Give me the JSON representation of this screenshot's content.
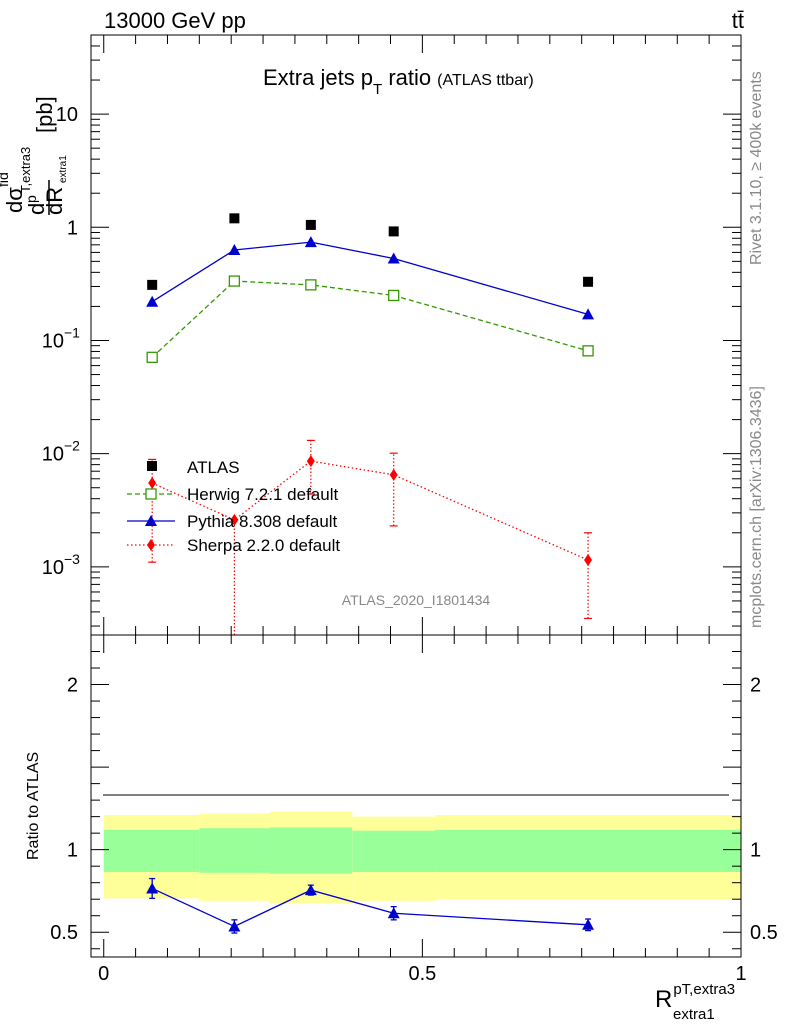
{
  "header": {
    "energy_label": "13000 GeV pp",
    "process_label": "tt̄"
  },
  "side_text": {
    "rivet": "Rivet 3.1.10, ≥ 400k events",
    "mcplots": "mcplots.cern.ch [arXiv:1306.3436]"
  },
  "chart_data": [
    {
      "type": "scatter",
      "title": "Extra jets p",
      "title_sub": "T",
      "title_tail": " ratio",
      "title_small": "(ATLAS ttbar)",
      "watermark": "ATLAS_2020_I1801434",
      "ylabel": {
        "d_top": "d",
        "sigma": "dσ",
        "fid": "fid",
        "p_sub": "p",
        "t_extra3": "T,extra3",
        "d_bottom": "dR",
        "extra1": "extra1",
        "unit": "[pb]"
      },
      "yscale": "log",
      "ylim": [
        0.00025,
        50
      ],
      "xlim": [
        -0.02,
        1.0
      ],
      "yticks": [
        {
          "value": 10,
          "label": "10",
          "sup": ""
        },
        {
          "value": 1,
          "label": "1",
          "sup": ""
        },
        {
          "value": 0.1,
          "label": "10",
          "sup": "−1"
        },
        {
          "value": 0.01,
          "label": "10",
          "sup": "−2"
        },
        {
          "value": 0.001,
          "label": "10",
          "sup": "−3"
        }
      ],
      "series": [
        {
          "name": "ATLAS",
          "color": "#000000",
          "marker": "square",
          "line": "none",
          "x": [
            0.076,
            0.205,
            0.325,
            0.455,
            0.76
          ],
          "y": [
            0.31,
            1.2,
            1.05,
            0.92,
            0.33
          ]
        },
        {
          "name": "Herwig 7.2.1 default",
          "color": "#339900",
          "marker": "open-square",
          "line": "dashed",
          "x": [
            0.076,
            0.205,
            0.325,
            0.455,
            0.76
          ],
          "y": [
            0.071,
            0.335,
            0.31,
            0.25,
            0.081
          ]
        },
        {
          "name": "Pythia 8.308 default",
          "color": "#0000cc",
          "marker": "triangle",
          "line": "solid",
          "x": [
            0.076,
            0.205,
            0.325,
            0.455,
            0.76
          ],
          "y": [
            0.22,
            0.63,
            0.74,
            0.53,
            0.17
          ]
        },
        {
          "name": "Sherpa 2.2.0 default",
          "color": "#ff0000",
          "marker": "diamond",
          "line": "dotted",
          "x": [
            0.076,
            0.205,
            0.325,
            0.455,
            0.76
          ],
          "y": [
            0.0055,
            0.0026,
            0.0086,
            0.0065,
            0.00115
          ],
          "err_low": [
            0.0044,
            0.0026,
            0.0042,
            0.0042,
            0.0008
          ],
          "err_high": [
            0.0034,
            0.0,
            0.0045,
            0.0036,
            0.00085
          ]
        }
      ]
    },
    {
      "type": "scatter",
      "ylabel": "Ratio to ATLAS",
      "xlabel": {
        "main": "R",
        "sup": "pT,extra3",
        "sub": "extra1"
      },
      "xlim": [
        -0.02,
        1.0
      ],
      "ylim": [
        0.35,
        2.3
      ],
      "xticks": [
        {
          "value": 0,
          "label": "0"
        },
        {
          "value": 0.5,
          "label": "0.5"
        },
        {
          "value": 1,
          "label": "1"
        }
      ],
      "yticks": [
        {
          "value": 0.5,
          "label": "0.5"
        },
        {
          "value": 1,
          "label": "1"
        },
        {
          "value": 2,
          "label": "2"
        }
      ],
      "bands": [
        {
          "x0": 0.0,
          "x1": 0.15,
          "inner": [
            0.865,
            1.12
          ],
          "outer": [
            0.705,
            1.21
          ]
        },
        {
          "x0": 0.15,
          "x1": 0.26,
          "inner": [
            0.86,
            1.13
          ],
          "outer": [
            0.69,
            1.22
          ]
        },
        {
          "x0": 0.26,
          "x1": 0.39,
          "inner": [
            0.855,
            1.135
          ],
          "outer": [
            0.675,
            1.23
          ]
        },
        {
          "x0": 0.39,
          "x1": 0.52,
          "inner": [
            0.865,
            1.115
          ],
          "outer": [
            0.69,
            1.2
          ]
        },
        {
          "x0": 0.52,
          "x1": 1.0,
          "inner": [
            0.865,
            1.12
          ],
          "outer": [
            0.7,
            1.21
          ]
        }
      ],
      "band_colors": {
        "inner": "#99ff99",
        "outer": "#ffff99"
      },
      "series": [
        {
          "name": "Pythia 8.308 default",
          "color": "#0000cc",
          "x": [
            0.076,
            0.205,
            0.325,
            0.455,
            0.76
          ],
          "y": [
            0.765,
            0.535,
            0.755,
            0.615,
            0.545
          ],
          "err": [
            0.06,
            0.04,
            0.03,
            0.04,
            0.035
          ]
        }
      ]
    }
  ]
}
